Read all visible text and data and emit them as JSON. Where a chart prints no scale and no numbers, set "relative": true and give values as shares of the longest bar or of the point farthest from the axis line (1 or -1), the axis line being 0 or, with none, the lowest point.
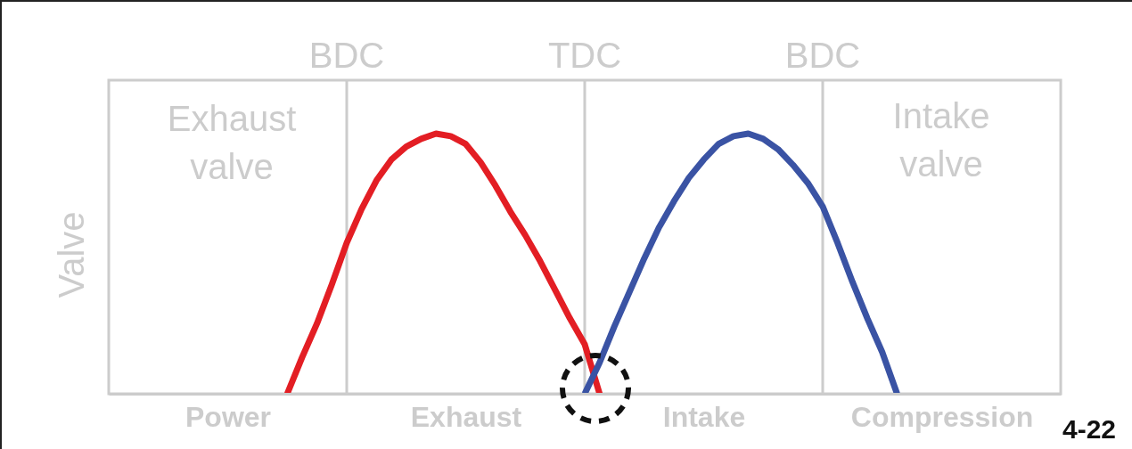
{
  "chart_data": {
    "type": "line",
    "relative": true,
    "ylabel": "Valve",
    "categories": [
      null,
      null,
      null,
      null,
      null,
      null,
      null,
      null,
      "Power",
      null,
      null,
      null,
      null,
      null,
      null,
      null,
      null,
      null,
      null,
      null,
      null,
      null,
      null,
      null,
      "Exhaust",
      null,
      null,
      null,
      null,
      null,
      null,
      null,
      null,
      null,
      null,
      null,
      null,
      null,
      null,
      null,
      "Intake",
      null,
      null,
      null,
      null,
      null,
      null,
      null,
      null,
      null,
      null,
      null,
      null,
      null,
      null,
      null,
      "Compression",
      null,
      null,
      null,
      null,
      null,
      null,
      null,
      null
    ],
    "annotations": [
      "Exhaust\nvalve",
      "Intake\nvalve",
      "4-22",
      "BDC",
      "TDC",
      "BDC"
    ],
    "line_style": "solid",
    "series": [
      {
        "color": "#e31e24",
        "values": [
          null,
          null,
          null,
          null,
          null,
          null,
          null,
          null,
          null,
          null,
          null,
          null,
          0,
          0.14,
          0.27,
          0.42,
          0.58,
          0.71,
          0.82,
          0.9,
          0.95,
          0.98,
          1,
          0.99,
          0.96,
          0.89,
          0.8,
          0.7,
          0.61,
          0.51,
          0.4,
          0.29,
          0.19,
          0,
          null,
          null,
          null,
          null,
          null,
          null,
          null,
          null,
          null,
          null,
          null,
          null,
          null,
          null,
          null,
          null,
          null,
          null,
          null,
          null,
          null,
          null,
          null,
          null,
          null,
          null,
          null,
          null,
          null,
          null,
          null
        ]
      },
      {
        "color": "#3a53a4",
        "values": [
          null,
          null,
          null,
          null,
          null,
          null,
          null,
          null,
          null,
          null,
          null,
          null,
          null,
          null,
          null,
          null,
          null,
          null,
          null,
          null,
          null,
          null,
          null,
          null,
          null,
          null,
          null,
          null,
          null,
          null,
          null,
          null,
          0,
          0.12,
          0.26,
          0.39,
          0.52,
          0.64,
          0.74,
          0.83,
          0.9,
          0.96,
          0.99,
          1,
          0.98,
          0.94,
          0.88,
          0.81,
          0.72,
          0.58,
          0.43,
          0.29,
          0.16,
          0,
          null,
          null,
          null,
          null,
          null,
          null,
          null,
          null,
          null,
          null,
          null
        ]
      }
    ]
  }
}
